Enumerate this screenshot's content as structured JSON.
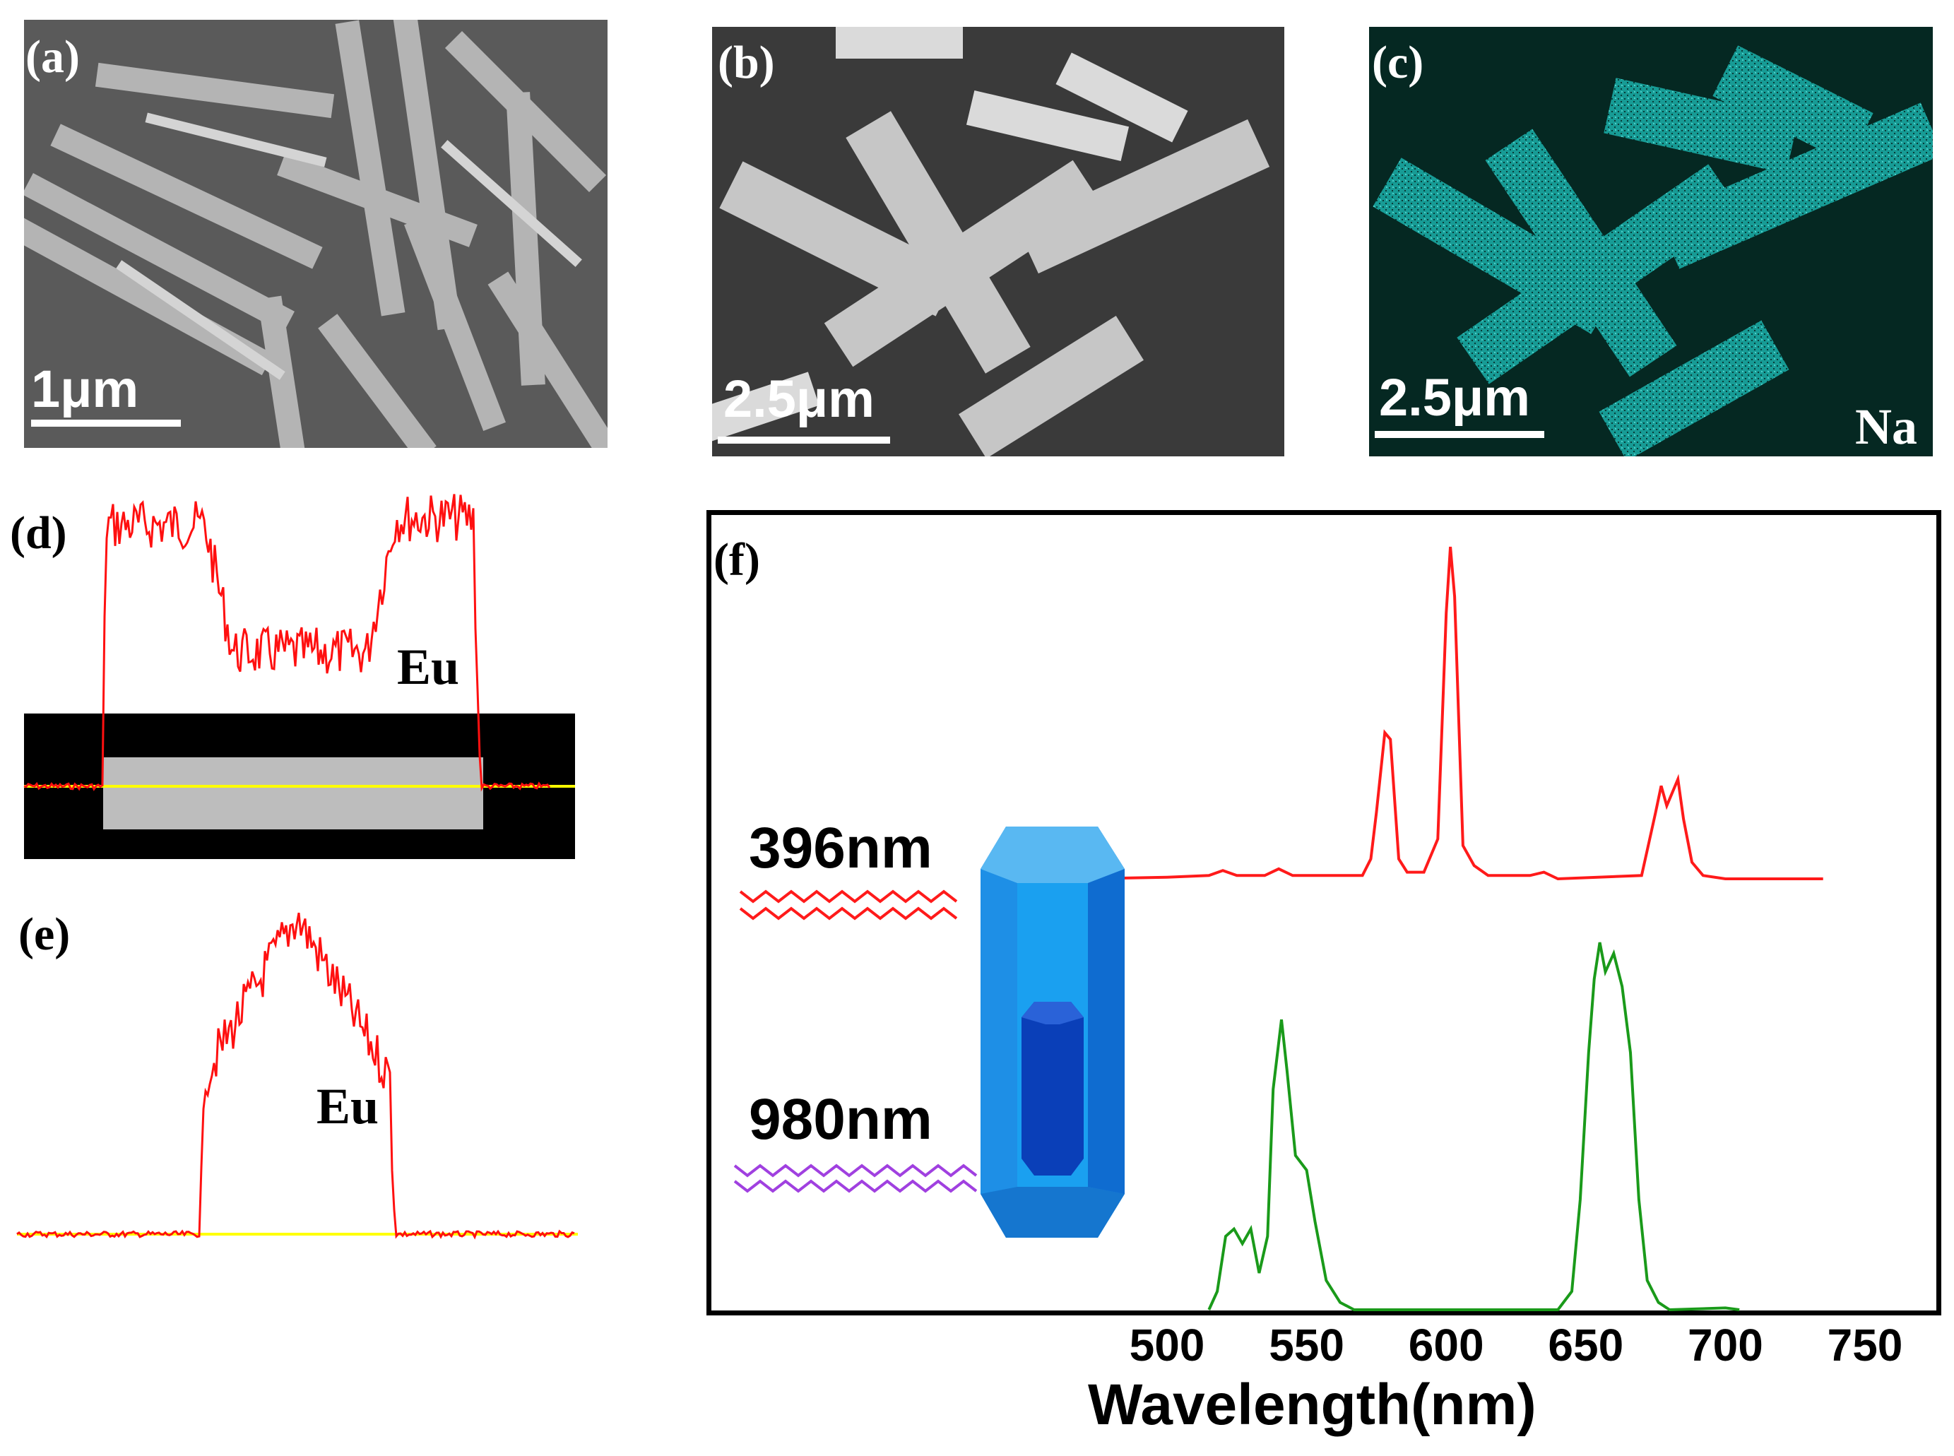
{
  "panels": {
    "a": {
      "label": "(a)",
      "scale_bar": "1μm"
    },
    "b": {
      "label": "(b)",
      "scale_bar": "2.5μm"
    },
    "c": {
      "label": "(c)",
      "scale_bar": "2.5μm",
      "element": "Na",
      "map_color": "#27c8c0"
    },
    "d": {
      "label": "(d)",
      "element": "Eu"
    },
    "e": {
      "label": "(e)",
      "element": "Eu"
    },
    "f": {
      "label": "(f)"
    }
  },
  "colors": {
    "linescan": "#ff1010",
    "baseline": "#ffff00",
    "red_spectrum": "#ff1a1a",
    "green_spectrum": "#1a9a1a",
    "crystal": "#1e90e8",
    "wave_980": "#a040e0"
  },
  "chart_data": {
    "type": "line",
    "xlabel": "Wavelength(nm)",
    "x_ticks": [
      500,
      550,
      600,
      650,
      700,
      750
    ],
    "xlim": [
      480,
      760
    ],
    "excitation_labels": [
      "396nm",
      "980nm"
    ],
    "series": [
      {
        "excitation": "396nm",
        "color": "#ff1a1a",
        "points": [
          [
            470,
            0
          ],
          [
            500,
            0.005
          ],
          [
            515,
            0.01
          ],
          [
            520,
            0.025
          ],
          [
            525,
            0.01
          ],
          [
            535,
            0.01
          ],
          [
            540,
            0.03
          ],
          [
            545,
            0.01
          ],
          [
            570,
            0.01
          ],
          [
            573,
            0.06
          ],
          [
            575,
            0.2
          ],
          [
            578,
            0.44
          ],
          [
            580,
            0.42
          ],
          [
            583,
            0.06
          ],
          [
            586,
            0.02
          ],
          [
            592,
            0.02
          ],
          [
            597,
            0.12
          ],
          [
            600,
            0.8
          ],
          [
            601.5,
            1.0
          ],
          [
            603,
            0.85
          ],
          [
            606,
            0.1
          ],
          [
            610,
            0.04
          ],
          [
            615,
            0.01
          ],
          [
            630,
            0.01
          ],
          [
            635,
            0.02
          ],
          [
            640,
            0.0
          ],
          [
            670,
            0.01
          ],
          [
            675,
            0.2
          ],
          [
            677,
            0.28
          ],
          [
            679,
            0.22
          ],
          [
            681,
            0.26
          ],
          [
            683,
            0.3
          ],
          [
            685,
            0.18
          ],
          [
            688,
            0.05
          ],
          [
            692,
            0.01
          ],
          [
            700,
            0.0
          ],
          [
            735,
            0.0
          ]
        ]
      },
      {
        "excitation": "980nm",
        "color": "#1a9a1a",
        "points": [
          [
            515,
            0
          ],
          [
            518,
            0.05
          ],
          [
            521,
            0.2
          ],
          [
            524,
            0.22
          ],
          [
            527,
            0.18
          ],
          [
            530,
            0.22
          ],
          [
            533,
            0.1
          ],
          [
            536,
            0.2
          ],
          [
            538,
            0.6
          ],
          [
            541,
            0.79
          ],
          [
            543,
            0.65
          ],
          [
            546,
            0.42
          ],
          [
            550,
            0.38
          ],
          [
            553,
            0.24
          ],
          [
            557,
            0.08
          ],
          [
            562,
            0.02
          ],
          [
            567,
            0
          ],
          [
            640,
            0
          ],
          [
            645,
            0.05
          ],
          [
            648,
            0.3
          ],
          [
            651,
            0.7
          ],
          [
            653,
            0.9
          ],
          [
            655,
            1.0
          ],
          [
            657,
            0.92
          ],
          [
            660,
            0.97
          ],
          [
            663,
            0.88
          ],
          [
            666,
            0.7
          ],
          [
            669,
            0.3
          ],
          [
            672,
            0.08
          ],
          [
            676,
            0.02
          ],
          [
            680,
            0
          ],
          [
            700,
            0.005
          ],
          [
            705,
            0
          ]
        ]
      }
    ]
  }
}
